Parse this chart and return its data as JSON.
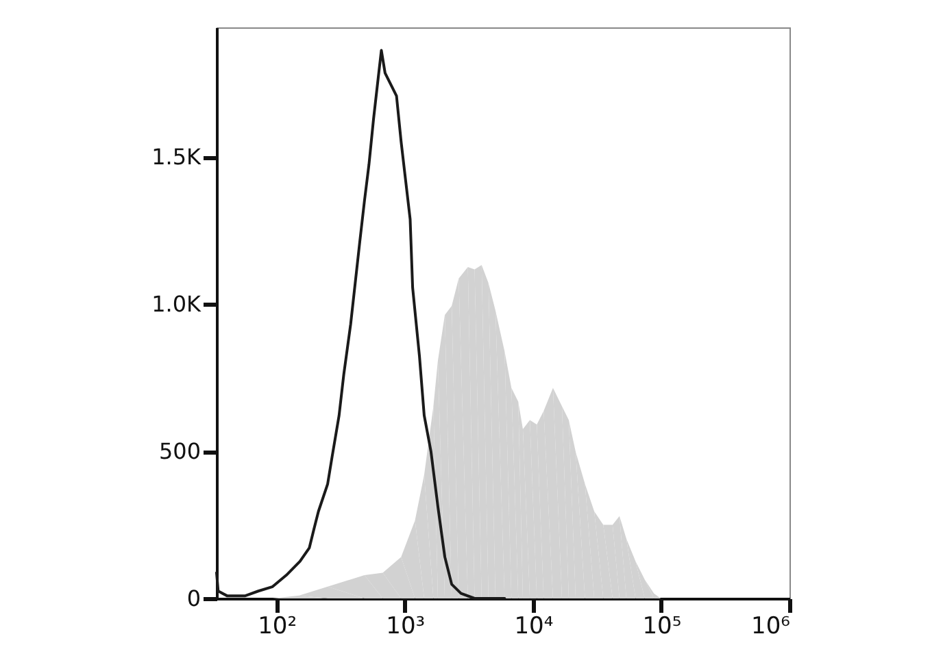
{
  "chart_data": {
    "type": "area",
    "log": "x",
    "grid": false,
    "xlim": [
      34,
      1000000
    ],
    "xticks": [
      {
        "value": 100,
        "label": "10²"
      },
      {
        "value": 1000,
        "label": "10³"
      },
      {
        "value": 10000,
        "label": "10⁴"
      },
      {
        "value": 100000,
        "label": "10⁵"
      },
      {
        "value": 1000000,
        "label": "10⁶"
      }
    ],
    "ylim": [
      0,
      1940
    ],
    "yticks": [
      0,
      500,
      {
        "value": 1000,
        "label": "1.0K"
      },
      {
        "value": 1500,
        "label": "1.5K"
      }
    ],
    "series": [
      {
        "color": "#d2d2d2",
        "x": [
          60,
          93,
          150,
          250,
          484,
          673,
          935,
          1200,
          1415,
          1670,
          1810,
          2050,
          2320,
          2630,
          3100,
          3500,
          3970,
          4490,
          5090,
          6000,
          6780,
          7670,
          8330,
          9440,
          10700,
          12100,
          14300,
          16800,
          19000,
          21500,
          25400,
          30000,
          35300,
          41700,
          47200,
          53400,
          63000,
          74300,
          87700,
          99000
        ],
        "values": [
          0,
          0,
          10,
          40,
          79,
          87,
          141,
          265,
          420,
          653,
          808,
          963,
          994,
          1087,
          1126,
          1118,
          1133,
          1071,
          978,
          839,
          715,
          668,
          575,
          606,
          591,
          637,
          715,
          653,
          606,
          498,
          389,
          296,
          250,
          250,
          280,
          203,
          126,
          64,
          17,
          0
        ]
      },
      {
        "type": "line",
        "color": "#1a1a1a",
        "x": [
          34,
          35,
          41,
          57,
          72,
          93,
          119,
          152,
          180,
          195,
          212,
          250,
          271,
          307,
          334,
          378,
          410,
          445,
          484,
          525,
          570,
          620,
          656,
          701,
          794,
          861,
          935,
          1100,
          1150,
          1300,
          1415,
          1600,
          1810,
          2050,
          2320,
          2740,
          3500,
          6000
        ],
        "values": [
          87,
          25,
          9,
          9,
          25,
          40,
          79,
          126,
          172,
          234,
          296,
          389,
          482,
          622,
          761,
          932,
          1071,
          1211,
          1350,
          1474,
          1629,
          1769,
          1862,
          1785,
          1738,
          1707,
          1552,
          1288,
          1056,
          823,
          622,
          498,
          312,
          141,
          48,
          17,
          0,
          0
        ]
      }
    ]
  }
}
